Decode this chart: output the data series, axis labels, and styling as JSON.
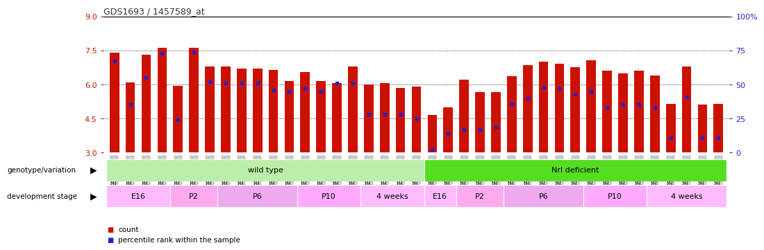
{
  "title": "GDS1693 / 1457589_at",
  "samples": [
    "GSM92633",
    "GSM92634",
    "GSM92635",
    "GSM92636",
    "GSM92641",
    "GSM92642",
    "GSM92643",
    "GSM92644",
    "GSM92645",
    "GSM92646",
    "GSM92647",
    "GSM92648",
    "GSM92637",
    "GSM92638",
    "GSM92639",
    "GSM92640",
    "GSM92629",
    "GSM92630",
    "GSM92631",
    "GSM92632",
    "GSM92614",
    "GSM92615",
    "GSM92616",
    "GSM92621",
    "GSM92622",
    "GSM92623",
    "GSM92624",
    "GSM92625",
    "GSM92626",
    "GSM92627",
    "GSM92628",
    "GSM92617",
    "GSM92618",
    "GSM92619",
    "GSM92620",
    "GSM92610",
    "GSM92611",
    "GSM92612",
    "GSM92613"
  ],
  "counts": [
    7.4,
    6.1,
    7.3,
    7.6,
    5.95,
    7.6,
    6.8,
    6.8,
    6.7,
    6.7,
    6.65,
    6.15,
    6.55,
    6.15,
    6.05,
    6.8,
    6.0,
    6.05,
    5.85,
    5.9,
    4.65,
    5.0,
    6.2,
    5.65,
    5.65,
    6.35,
    6.85,
    7.0,
    6.9,
    6.75,
    7.05,
    6.6,
    6.5,
    6.6,
    6.4,
    5.15,
    6.8,
    5.1,
    5.15
  ],
  "percentile_ranks_pct": [
    67,
    35,
    55,
    73,
    24,
    74,
    52,
    51,
    51,
    51,
    46,
    45,
    47,
    45,
    51,
    51,
    28,
    28,
    28,
    25,
    2,
    14,
    17,
    17,
    19,
    36,
    40,
    48,
    47,
    43,
    45,
    33,
    35,
    35,
    33,
    11,
    41,
    11,
    11
  ],
  "ymin": 3.0,
  "ymax": 9.0,
  "yticks": [
    3.0,
    4.5,
    6.0,
    7.5,
    9.0
  ],
  "right_yticks": [
    0,
    25,
    50,
    75,
    100
  ],
  "bar_color": "#cc1100",
  "dot_color": "#2222cc",
  "grid_color": "#000000",
  "title_color": "#333333",
  "ylabel_color": "#cc1100",
  "right_ylabel_color": "#2222cc",
  "wild_type_color": "#bbeeaa",
  "nrl_color": "#55dd22",
  "stage_colors": {
    "E16_odd": "#ffbbff",
    "P2_odd": "#ffaaee",
    "P6_odd": "#eeaaee",
    "P10_odd": "#ffaaff",
    "4weeks_odd": "#ffbbff"
  },
  "background_color": "#ffffff",
  "tick_label_bg": "#cccccc",
  "genotype_groups": [
    {
      "label": "wild type",
      "start": 0,
      "end": 20,
      "color": "#bbeeaa"
    },
    {
      "label": "Nrl deficient",
      "start": 20,
      "end": 39,
      "color": "#55dd22"
    }
  ],
  "stage_groups": [
    {
      "label": "E16",
      "start": 0,
      "end": 4,
      "color": "#ffbbff"
    },
    {
      "label": "P2",
      "start": 4,
      "end": 7,
      "color": "#ffaaee"
    },
    {
      "label": "P6",
      "start": 7,
      "end": 12,
      "color": "#eeaaee"
    },
    {
      "label": "P10",
      "start": 12,
      "end": 16,
      "color": "#ffaaff"
    },
    {
      "label": "4 weeks",
      "start": 16,
      "end": 20,
      "color": "#ffbbff"
    },
    {
      "label": "E16",
      "start": 20,
      "end": 22,
      "color": "#ffbbff"
    },
    {
      "label": "P2",
      "start": 22,
      "end": 25,
      "color": "#ffaaee"
    },
    {
      "label": "P6",
      "start": 25,
      "end": 30,
      "color": "#eeaaee"
    },
    {
      "label": "P10",
      "start": 30,
      "end": 34,
      "color": "#ffaaff"
    },
    {
      "label": "4 weeks",
      "start": 34,
      "end": 39,
      "color": "#ffbbff"
    }
  ]
}
